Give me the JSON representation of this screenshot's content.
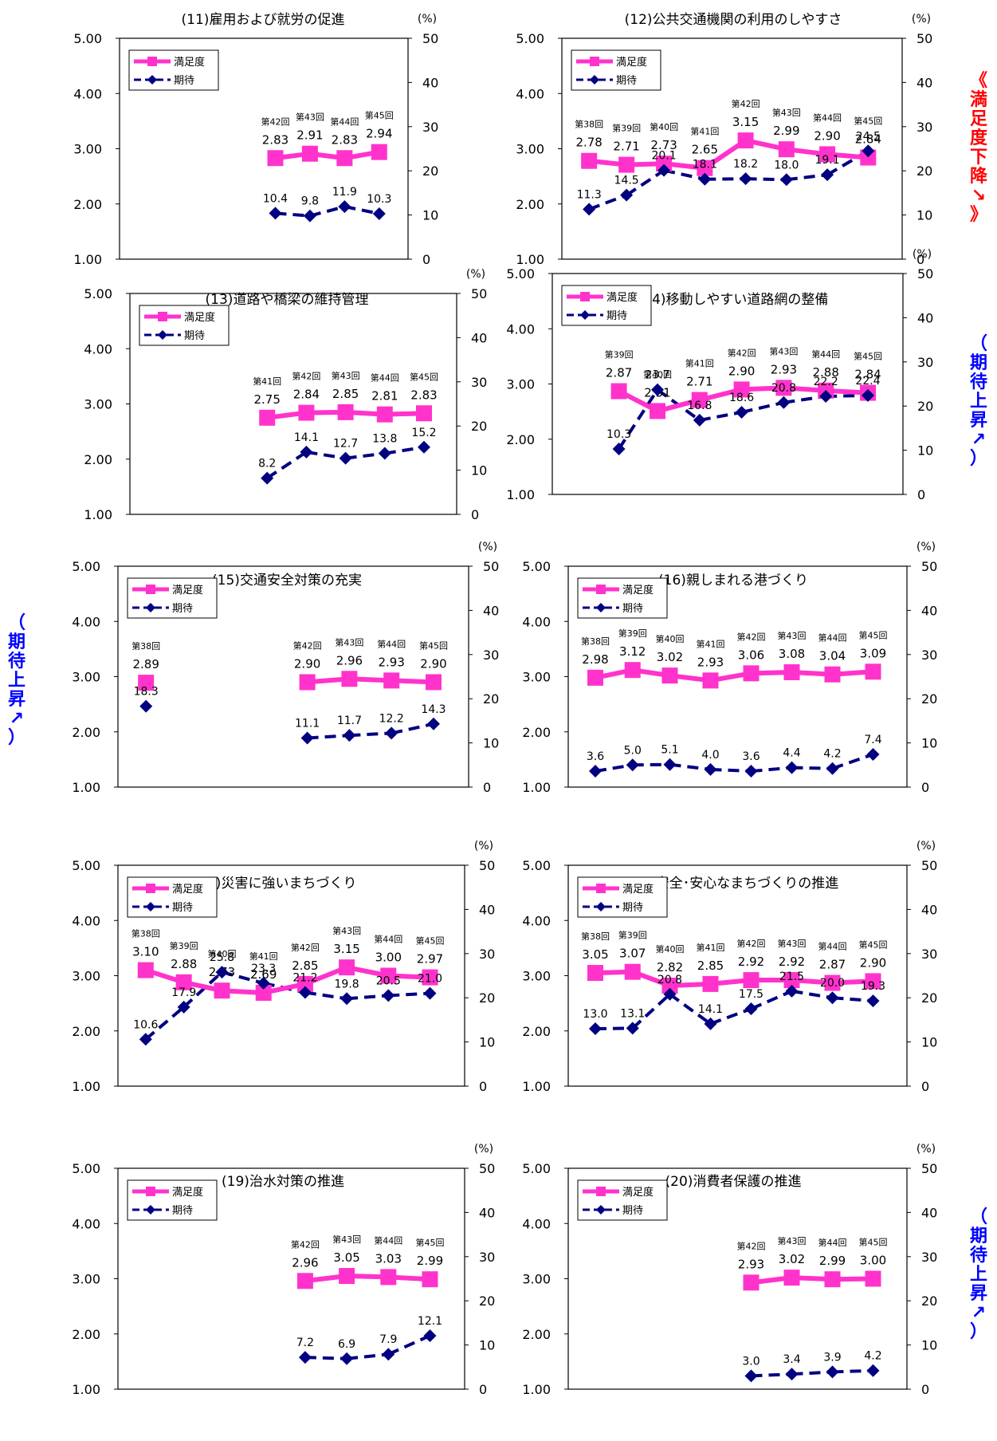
{
  "legend": {
    "satisfaction": "満足度",
    "expectation": "期待"
  },
  "pct_unit": "(%)",
  "colors": {
    "satisfaction": "#ff33cc",
    "expectation": "#000080",
    "frame": "#000000",
    "red_note": "#ff0000",
    "blue_note": "#0000ff"
  },
  "side_notes": {
    "right_top": "《 満足度下降 ↘ 》",
    "right_mid": "（ 期待上昇 ↗ ）",
    "left_mid": "（ 期待上昇 ↗ ）",
    "right_bottom": "（ 期待上昇 ↗ ）"
  },
  "chart_data": [
    {
      "type": "line",
      "title": "(11)雇用および就労の促進",
      "x": [
        "第42回",
        "第43回",
        "第44回",
        "第45回"
      ],
      "series": [
        {
          "name": "満足度",
          "axis": "left",
          "values": [
            2.83,
            2.91,
            2.83,
            2.94
          ],
          "labels": [
            "2.83",
            "2.91",
            "2.83",
            "2.94"
          ]
        },
        {
          "name": "期待",
          "axis": "right",
          "values": [
            10.4,
            9.8,
            11.9,
            10.3
          ],
          "labels": [
            "10.4",
            "9.8",
            "11.9",
            "10.3"
          ]
        }
      ],
      "ylim": [
        1,
        5
      ],
      "y_ticks": [
        "1.00",
        "2.00",
        "3.00",
        "4.00",
        "5.00"
      ],
      "y2lim": [
        0,
        50
      ],
      "y2_ticks": [
        "0",
        "10",
        "20",
        "30",
        "40",
        "50"
      ]
    },
    {
      "type": "line",
      "title": "(12)公共交通機関の利用のしやすさ",
      "x": [
        "第38回",
        "第39回",
        "第40回",
        "第41回",
        "第42回",
        "第43回",
        "第44回",
        "第45回"
      ],
      "series": [
        {
          "name": "満足度",
          "axis": "left",
          "values": [
            2.78,
            2.71,
            2.73,
            2.65,
            3.15,
            2.99,
            2.9,
            2.84
          ],
          "labels": [
            "2.78",
            "2.71",
            "2.73",
            "2.65",
            "3.15",
            "2.99",
            "2.90",
            "2.84"
          ]
        },
        {
          "name": "期待",
          "axis": "right",
          "values": [
            11.3,
            14.5,
            20.1,
            18.1,
            18.2,
            18.0,
            19.1,
            24.5
          ],
          "labels": [
            "11.3",
            "14.5",
            "20.1",
            "18.1",
            "18.2",
            "18.0",
            "19.1",
            "24.5"
          ]
        }
      ],
      "ylim": [
        1,
        5
      ],
      "y_ticks": [
        "1.00",
        "2.00",
        "3.00",
        "4.00",
        "5.00"
      ],
      "y2lim": [
        0,
        50
      ],
      "y2_ticks": [
        "0",
        "10",
        "20",
        "30",
        "40",
        "50"
      ]
    },
    {
      "type": "line",
      "title": "(13)道路や橋梁の維持管理",
      "x": [
        "第41回",
        "第42回",
        "第43回",
        "第44回",
        "第45回"
      ],
      "series": [
        {
          "name": "満足度",
          "axis": "left",
          "values": [
            2.75,
            2.84,
            2.85,
            2.81,
            2.83
          ],
          "labels": [
            "2.75",
            "2.84",
            "2.85",
            "2.81",
            "2.83"
          ]
        },
        {
          "name": "期待",
          "axis": "right",
          "values": [
            8.2,
            14.1,
            12.7,
            13.8,
            15.2
          ],
          "labels": [
            "8.2",
            "14.1",
            "12.7",
            "13.8",
            "15.2"
          ]
        }
      ],
      "ylim": [
        1,
        5
      ],
      "y_ticks": [
        "1.00",
        "2.00",
        "3.00",
        "4.00",
        "5.00"
      ],
      "y2lim": [
        0,
        50
      ],
      "y2_ticks": [
        "0",
        "10",
        "20",
        "30",
        "40",
        "50"
      ]
    },
    {
      "type": "line",
      "title": "(14)移動しやすい道路網の整備",
      "x": [
        "第39回",
        "第40回",
        "第41回",
        "第42回",
        "第43回",
        "第44回",
        "第45回"
      ],
      "series": [
        {
          "name": "満足度",
          "axis": "left",
          "values": [
            2.87,
            2.51,
            2.71,
            2.9,
            2.93,
            2.88,
            2.84
          ],
          "labels": [
            "2.87",
            "2.51",
            "2.71",
            "2.90",
            "2.93",
            "2.88",
            "2.84"
          ]
        },
        {
          "name": "期待",
          "axis": "right",
          "values": [
            10.3,
            23.7,
            16.8,
            18.6,
            20.8,
            22.2,
            22.4
          ],
          "labels": [
            "10.3",
            "23.7",
            "16.8",
            "18.6",
            "20.8",
            "22.2",
            "22.4"
          ]
        }
      ],
      "ylim": [
        1,
        5
      ],
      "y_ticks": [
        "1.00",
        "2.00",
        "3.00",
        "4.00",
        "5.00"
      ],
      "y2lim": [
        0,
        50
      ],
      "y2_ticks": [
        "0",
        "10",
        "20",
        "30",
        "40",
        "50"
      ]
    },
    {
      "type": "line",
      "title": "(15)交通安全対策の充実",
      "x": [
        "第38回",
        "",
        "",
        "",
        "第42回",
        "第43回",
        "第44回",
        "第45回"
      ],
      "series": [
        {
          "name": "満足度",
          "axis": "left",
          "values": [
            2.89,
            null,
            null,
            null,
            2.9,
            2.96,
            2.93,
            2.9
          ],
          "labels": [
            "2.89",
            "",
            "",
            "",
            "2.90",
            "2.96",
            "2.93",
            "2.90"
          ]
        },
        {
          "name": "期待",
          "axis": "right",
          "values": [
            18.3,
            null,
            null,
            null,
            11.1,
            11.7,
            12.2,
            14.3
          ],
          "labels": [
            "18.3",
            "",
            "",
            "",
            "11.1",
            "11.7",
            "12.2",
            "14.3"
          ]
        }
      ],
      "ylim": [
        1,
        5
      ],
      "y_ticks": [
        "1.00",
        "2.00",
        "3.00",
        "4.00",
        "5.00"
      ],
      "y2lim": [
        0,
        50
      ],
      "y2_ticks": [
        "0",
        "10",
        "20",
        "30",
        "40",
        "50"
      ]
    },
    {
      "type": "line",
      "title": "(16)親しまれる港づくり",
      "x": [
        "第38回",
        "第39回",
        "第40回",
        "第41回",
        "第42回",
        "第43回",
        "第44回",
        "第45回"
      ],
      "series": [
        {
          "name": "満足度",
          "axis": "left",
          "values": [
            2.98,
            3.12,
            3.02,
            2.93,
            3.06,
            3.08,
            3.04,
            3.09
          ],
          "labels": [
            "2.98",
            "3.12",
            "3.02",
            "2.93",
            "3.06",
            "3.08",
            "3.04",
            "3.09"
          ]
        },
        {
          "name": "期待",
          "axis": "right",
          "values": [
            3.6,
            5.0,
            5.1,
            4.0,
            3.6,
            4.4,
            4.2,
            7.4
          ],
          "labels": [
            "3.6",
            "5.0",
            "5.1",
            "4.0",
            "3.6",
            "4.4",
            "4.2",
            "7.4"
          ]
        }
      ],
      "ylim": [
        1,
        5
      ],
      "y_ticks": [
        "1.00",
        "2.00",
        "3.00",
        "4.00",
        "5.00"
      ],
      "y2lim": [
        0,
        50
      ],
      "y2_ticks": [
        "0",
        "10",
        "20",
        "30",
        "40",
        "50"
      ]
    },
    {
      "type": "line",
      "title": "(17)災害に強いまちづくり",
      "x": [
        "第38回",
        "第39回",
        "第40回",
        "第41回",
        "第42回",
        "第43回",
        "第44回",
        "第45回"
      ],
      "series": [
        {
          "name": "満足度",
          "axis": "left",
          "values": [
            3.1,
            2.88,
            2.73,
            2.69,
            2.85,
            3.15,
            3.0,
            2.97
          ],
          "labels": [
            "3.10",
            "2.88",
            "2.73",
            "2.69",
            "2.85",
            "3.15",
            "3.00",
            "2.97"
          ]
        },
        {
          "name": "期待",
          "axis": "right",
          "values": [
            10.6,
            17.9,
            25.8,
            23.3,
            21.2,
            19.8,
            20.5,
            21.0
          ],
          "labels": [
            "10.6",
            "17.9",
            "25.8",
            "23.3",
            "21.2",
            "19.8",
            "20.5",
            "21.0"
          ]
        }
      ],
      "ylim": [
        1,
        5
      ],
      "y_ticks": [
        "1.00",
        "2.00",
        "3.00",
        "4.00",
        "5.00"
      ],
      "y2lim": [
        0,
        50
      ],
      "y2_ticks": [
        "0",
        "10",
        "20",
        "30",
        "40",
        "50"
      ]
    },
    {
      "type": "line",
      "title": "(18)安全･安心なまちづくりの推進",
      "x": [
        "第38回",
        "第39回",
        "第40回",
        "第41回",
        "第42回",
        "第43回",
        "第44回",
        "第45回"
      ],
      "series": [
        {
          "name": "満足度",
          "axis": "left",
          "values": [
            3.05,
            3.07,
            2.82,
            2.85,
            2.92,
            2.92,
            2.87,
            2.9
          ],
          "labels": [
            "3.05",
            "3.07",
            "2.82",
            "2.85",
            "2.92",
            "2.92",
            "2.87",
            "2.90"
          ]
        },
        {
          "name": "期待",
          "axis": "right",
          "values": [
            13.0,
            13.1,
            20.8,
            14.1,
            17.5,
            21.5,
            20.0,
            19.3
          ],
          "labels": [
            "13.0",
            "13.1",
            "20.8",
            "14.1",
            "17.5",
            "21.5",
            "20.0",
            "19.3"
          ]
        }
      ],
      "ylim": [
        1,
        5
      ],
      "y_ticks": [
        "1.00",
        "2.00",
        "3.00",
        "4.00",
        "5.00"
      ],
      "y2lim": [
        0,
        50
      ],
      "y2_ticks": [
        "0",
        "10",
        "20",
        "30",
        "40",
        "50"
      ]
    },
    {
      "type": "line",
      "title": "(19)治水対策の推進",
      "x": [
        "第42回",
        "第43回",
        "第44回",
        "第45回"
      ],
      "series": [
        {
          "name": "満足度",
          "axis": "left",
          "values": [
            2.96,
            3.05,
            3.03,
            2.99
          ],
          "labels": [
            "2.96",
            "3.05",
            "3.03",
            "2.99"
          ]
        },
        {
          "name": "期待",
          "axis": "right",
          "values": [
            7.2,
            6.9,
            7.9,
            12.1
          ],
          "labels": [
            "7.2",
            "6.9",
            "7.9",
            "12.1"
          ]
        }
      ],
      "ylim": [
        1,
        5
      ],
      "y_ticks": [
        "1.00",
        "2.00",
        "3.00",
        "4.00",
        "5.00"
      ],
      "y2lim": [
        0,
        50
      ],
      "y2_ticks": [
        "0",
        "10",
        "20",
        "30",
        "40",
        "50"
      ]
    },
    {
      "type": "line",
      "title": "(20)消費者保護の推進",
      "x": [
        "第42回",
        "第43回",
        "第44回",
        "第45回"
      ],
      "series": [
        {
          "name": "満足度",
          "axis": "left",
          "values": [
            2.93,
            3.02,
            2.99,
            3.0
          ],
          "labels": [
            "2.93",
            "3.02",
            "2.99",
            "3.00"
          ]
        },
        {
          "name": "期待",
          "axis": "right",
          "values": [
            3.0,
            3.4,
            3.9,
            4.2
          ],
          "labels": [
            "3.0",
            "3.4",
            "3.9",
            "4.2"
          ]
        }
      ],
      "ylim": [
        1,
        5
      ],
      "y_ticks": [
        "1.00",
        "2.00",
        "3.00",
        "4.00",
        "5.00"
      ],
      "y2lim": [
        0,
        50
      ],
      "y2_ticks": [
        "0",
        "10",
        "20",
        "30",
        "40",
        "50"
      ]
    }
  ]
}
